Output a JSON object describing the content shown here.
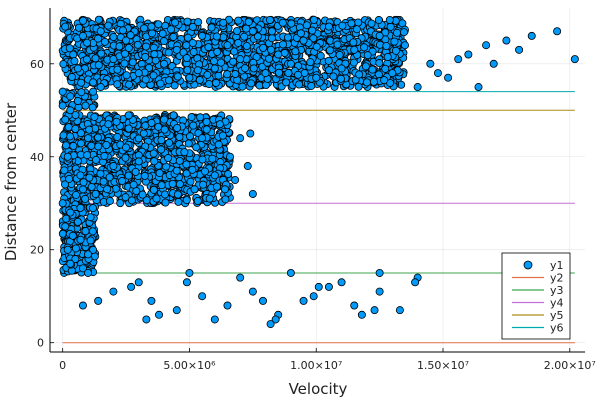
{
  "chart_data": {
    "type": "scatter",
    "xlabel": "Velocity",
    "ylabel": "Distance from center",
    "xlim": [
      -500000,
      20600000
    ],
    "ylim": [
      -2,
      72
    ],
    "x_ticks": [
      {
        "value": 0,
        "label": "0"
      },
      {
        "value": 5000000,
        "label": "5.00×10⁶"
      },
      {
        "value": 10000000,
        "label": "1.00×10⁷"
      },
      {
        "value": 15000000,
        "label": "1.50×10⁷"
      },
      {
        "value": 20000000,
        "label": "2.00×10⁷"
      }
    ],
    "y_ticks": [
      {
        "value": 0,
        "label": "0"
      },
      {
        "value": 20,
        "label": "20"
      },
      {
        "value": 40,
        "label": "40"
      },
      {
        "value": 60,
        "label": "60"
      }
    ],
    "grid": true,
    "legend": "bottom-right",
    "series": [
      {
        "name": "y1",
        "kind": "scatter",
        "color": "#009AFA",
        "points": [
          [
            100000,
            68
          ],
          [
            800000,
            66
          ],
          [
            1500000,
            67
          ],
          [
            2500000,
            65
          ],
          [
            3500000,
            68
          ],
          [
            4500000,
            63
          ],
          [
            5500000,
            66
          ],
          [
            6500000,
            64
          ],
          [
            7500000,
            67
          ],
          [
            8500000,
            62
          ],
          [
            9500000,
            65
          ],
          [
            10500000,
            68
          ],
          [
            11500000,
            63
          ],
          [
            12500000,
            66
          ],
          [
            13500000,
            64
          ],
          [
            14500000,
            60
          ],
          [
            15200000,
            57
          ],
          [
            16000000,
            62
          ],
          [
            16700000,
            64
          ],
          [
            17500000,
            65
          ],
          [
            19500000,
            67
          ],
          [
            20200000,
            61
          ],
          [
            18500000,
            66
          ],
          [
            14000000,
            55
          ],
          [
            13000000,
            58
          ],
          [
            12000000,
            56
          ],
          [
            11000000,
            59
          ],
          [
            10000000,
            57
          ],
          [
            9000000,
            60
          ],
          [
            8000000,
            58
          ],
          [
            7000000,
            61
          ],
          [
            6000000,
            59
          ],
          [
            5000000,
            57
          ],
          [
            4000000,
            60
          ],
          [
            3000000,
            58
          ],
          [
            2000000,
            61
          ],
          [
            1200000,
            56
          ],
          [
            600000,
            59
          ],
          [
            1500000,
            55
          ],
          [
            14800000,
            58
          ],
          [
            15600000,
            61
          ],
          [
            16400000,
            55
          ],
          [
            17000000,
            60
          ],
          [
            18000000,
            63
          ],
          [
            0,
            54
          ],
          [
            300000,
            53
          ],
          [
            600000,
            52
          ],
          [
            900000,
            51
          ],
          [
            1200000,
            54
          ],
          [
            0,
            51
          ],
          [
            300000,
            50
          ],
          [
            100000,
            48
          ],
          [
            500000,
            46
          ],
          [
            1000000,
            44
          ],
          [
            1800000,
            47
          ],
          [
            2500000,
            42
          ],
          [
            3200000,
            45
          ],
          [
            4000000,
            48
          ],
          [
            4800000,
            41
          ],
          [
            5500000,
            44
          ],
          [
            6200000,
            47
          ],
          [
            6600000,
            40
          ],
          [
            7000000,
            44
          ],
          [
            7300000,
            38
          ],
          [
            6800000,
            35
          ],
          [
            7500000,
            32
          ],
          [
            6000000,
            36
          ],
          [
            5200000,
            33
          ],
          [
            4500000,
            37
          ],
          [
            3700000,
            31
          ],
          [
            2800000,
            34
          ],
          [
            2000000,
            38
          ],
          [
            1300000,
            32
          ],
          [
            700000,
            36
          ],
          [
            200000,
            40
          ],
          [
            3000000,
            39
          ],
          [
            4200000,
            43
          ],
          [
            5800000,
            31
          ],
          [
            6400000,
            33
          ],
          [
            7400000,
            45
          ],
          [
            0,
            30
          ],
          [
            300000,
            28
          ],
          [
            600000,
            26
          ],
          [
            900000,
            24
          ],
          [
            1100000,
            22
          ],
          [
            200000,
            20
          ],
          [
            500000,
            18
          ],
          [
            800000,
            16
          ],
          [
            1000000,
            19
          ],
          [
            100000,
            25
          ],
          [
            700000,
            29
          ],
          [
            400000,
            23
          ],
          [
            1100000,
            27
          ],
          [
            300000,
            17
          ],
          [
            1000000,
            15
          ],
          [
            3000000,
            13
          ],
          [
            5000000,
            15
          ],
          [
            7000000,
            14
          ],
          [
            9000000,
            15
          ],
          [
            11000000,
            13
          ],
          [
            12500000,
            15
          ],
          [
            14000000,
            14
          ],
          [
            2000000,
            11
          ],
          [
            3500000,
            9
          ],
          [
            4500000,
            7
          ],
          [
            5500000,
            10
          ],
          [
            6500000,
            8
          ],
          [
            7500000,
            11
          ],
          [
            8500000,
            6
          ],
          [
            9500000,
            9
          ],
          [
            10500000,
            12
          ],
          [
            11500000,
            8
          ],
          [
            12500000,
            11
          ],
          [
            13300000,
            7
          ],
          [
            13900000,
            13
          ],
          [
            1400000,
            9
          ],
          [
            800000,
            8
          ],
          [
            3300000,
            5
          ],
          [
            3800000,
            6
          ],
          [
            6000000,
            5
          ],
          [
            8400000,
            5
          ],
          [
            8200000,
            4
          ],
          [
            10100000,
            12
          ],
          [
            11800000,
            6
          ],
          [
            12300000,
            7
          ],
          [
            2700000,
            12
          ],
          [
            4900000,
            13
          ],
          [
            7900000,
            9
          ],
          [
            9900000,
            10
          ]
        ]
      },
      {
        "name": "y2",
        "kind": "line",
        "color": "#E26F46",
        "x": [
          0,
          20200000
        ],
        "y": [
          0,
          0
        ]
      },
      {
        "name": "y3",
        "kind": "line",
        "color": "#3DA44D",
        "x": [
          0,
          20200000
        ],
        "y": [
          15,
          15
        ]
      },
      {
        "name": "y4",
        "kind": "line",
        "color": "#C271D2",
        "x": [
          0,
          20200000
        ],
        "y": [
          30,
          30
        ]
      },
      {
        "name": "y5",
        "kind": "line",
        "color": "#AC8D18",
        "x": [
          0,
          20200000
        ],
        "y": [
          50,
          50
        ]
      },
      {
        "name": "y6",
        "kind": "line",
        "color": "#00A9AD",
        "x": [
          0,
          20200000
        ],
        "y": [
          54,
          54
        ]
      }
    ],
    "dense_regions": [
      {
        "x": [
          0,
          13500000
        ],
        "y": [
          55,
          69.5
        ]
      },
      {
        "x": [
          0,
          1300000
        ],
        "y": [
          50.5,
          54
        ]
      },
      {
        "x": [
          0,
          6600000
        ],
        "y": [
          30,
          49
        ]
      },
      {
        "x": [
          0,
          1300000
        ],
        "y": [
          15,
          30
        ]
      }
    ]
  }
}
